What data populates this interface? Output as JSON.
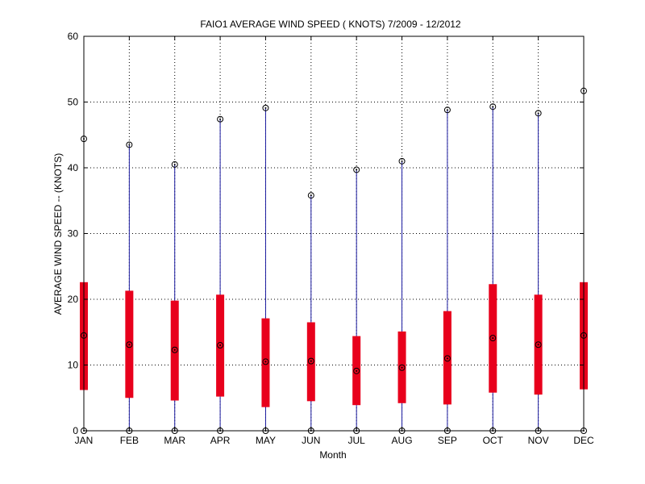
{
  "chart_data": {
    "type": "box",
    "title": "FAIO1  AVERAGE WIND SPEED ( KNOTS) 7/2009 - 12/2012",
    "xlabel": "Month",
    "ylabel": "AVERAGE WIND SPEED -- (KNOTS)",
    "ylim": [
      0,
      60
    ],
    "yticks": [
      0,
      10,
      20,
      30,
      40,
      50,
      60
    ],
    "grid": true,
    "categories": [
      "JAN",
      "FEB",
      "MAR",
      "APR",
      "MAY",
      "JUN",
      "JUL",
      "AUG",
      "SEP",
      "OCT",
      "NOV",
      "DEC"
    ],
    "series": [
      {
        "min": [
          0,
          0,
          0,
          0,
          0,
          0,
          0,
          0,
          0,
          0,
          0,
          0
        ],
        "q1": [
          6.2,
          5.0,
          4.6,
          5.2,
          3.6,
          4.5,
          3.9,
          4.2,
          4.0,
          5.8,
          5.5,
          6.3
        ],
        "median": [
          14.5,
          13.1,
          12.3,
          13.0,
          10.5,
          10.6,
          9.1,
          9.6,
          11.0,
          14.1,
          13.1,
          14.5
        ],
        "q3": [
          22.6,
          21.3,
          19.8,
          20.7,
          17.1,
          16.5,
          14.4,
          15.1,
          18.2,
          22.3,
          20.7,
          22.6
        ],
        "max": [
          44.4,
          43.5,
          40.5,
          47.4,
          49.1,
          35.8,
          39.7,
          41.0,
          48.8,
          49.3,
          48.3,
          51.7
        ]
      }
    ],
    "colors": {
      "box": "#e8001c",
      "whisker": "#1a1aa0",
      "marker": "#000000",
      "grid": "#000000"
    }
  }
}
